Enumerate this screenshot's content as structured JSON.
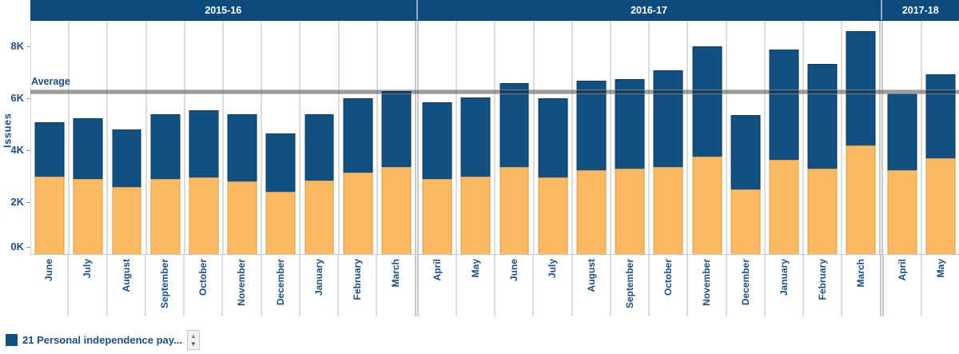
{
  "colors": {
    "header_band": "#0D4A7D",
    "bar_blue": "#115081",
    "bar_blue_border": "#0B3B61",
    "bar_orange": "#FBB964",
    "bar_orange_border": "#E09C43",
    "text_navy": "#1A4F8A",
    "average_line": "#9E9E9E"
  },
  "legend": {
    "item_label": "21 Personal independence pay...",
    "scroll_up_icon": "▲",
    "scroll_down_icon": "▼"
  },
  "chart_data": {
    "type": "bar",
    "stacked": true,
    "title": "",
    "ylabel": "Issues",
    "ylim_k": [
      0,
      9
    ],
    "grid": false,
    "yticks": [
      {
        "value": 0,
        "label": "0K"
      },
      {
        "value": 2,
        "label": "2K"
      },
      {
        "value": 4,
        "label": "4K"
      },
      {
        "value": 6,
        "label": "6K"
      },
      {
        "value": 8,
        "label": "8K"
      }
    ],
    "average": {
      "label": "Average",
      "value_k": 6.25
    },
    "series": [
      {
        "name": "21 Personal independence pay...",
        "color": "#115081",
        "position": "top"
      },
      {
        "name": "",
        "color": "#FBB964",
        "position": "bottom"
      }
    ],
    "groups": [
      {
        "label": "2015-16",
        "months": [
          "June",
          "July",
          "August",
          "September",
          "October",
          "November",
          "December",
          "January",
          "February",
          "March"
        ],
        "orange_k": [
          3.0,
          2.9,
          2.6,
          2.9,
          2.95,
          2.8,
          2.4,
          2.85,
          3.15,
          3.35
        ],
        "total_k": [
          5.1,
          5.25,
          4.8,
          5.4,
          5.55,
          5.4,
          4.65,
          5.4,
          6.0,
          6.3
        ]
      },
      {
        "label": "2016-17",
        "months": [
          "April",
          "May",
          "June",
          "July",
          "August",
          "September",
          "October",
          "November",
          "December",
          "January",
          "February",
          "March"
        ],
        "orange_k": [
          2.9,
          3.0,
          3.35,
          2.95,
          3.25,
          3.3,
          3.35,
          3.75,
          2.5,
          3.65,
          3.3,
          4.2
        ],
        "total_k": [
          5.85,
          6.05,
          6.6,
          6.0,
          6.7,
          6.75,
          7.1,
          8.0,
          5.35,
          7.9,
          7.35,
          8.6
        ]
      },
      {
        "label": "2017-18",
        "months": [
          "April",
          "May"
        ],
        "orange_k": [
          3.25,
          3.7
        ],
        "total_k": [
          6.2,
          6.95
        ]
      }
    ]
  }
}
